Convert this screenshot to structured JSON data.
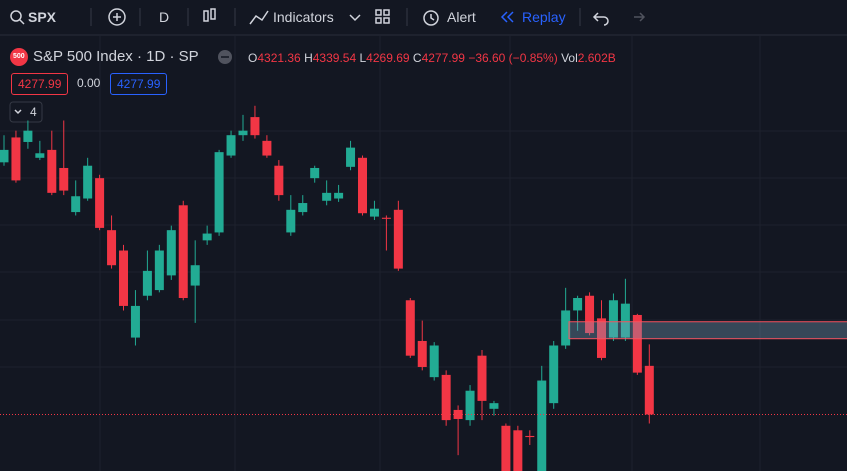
{
  "toolbar": {
    "symbol": "SPX",
    "interval": "D",
    "indicators": "Indicators",
    "alert": "Alert",
    "replay": "Replay"
  },
  "legend": {
    "badge": "500",
    "title": "S&P 500 Index · 1D · SP",
    "open_label": "O",
    "open": "4321.36",
    "high_label": "H",
    "high": "4339.54",
    "low_label": "L",
    "low": "4269.69",
    "close_label": "C",
    "close": "4277.99",
    "change": "−36.60 (−0.85%)",
    "vol_label": "Vol",
    "vol": "2.602B",
    "sell_price": "4277.99",
    "spread": "0.00",
    "buy_price": "4277.99",
    "collapse": "4"
  },
  "chart": {
    "type": "candlestick",
    "ylim": [
      4228,
      4580
    ],
    "up_color": "#22ab94",
    "down_color": "#f23645",
    "ohlc": [
      [
        4501,
        4525,
        4498,
        4512
      ],
      [
        4523,
        4529,
        4483,
        4485
      ],
      [
        4519,
        4538,
        4513,
        4529
      ],
      [
        4505,
        4520,
        4503,
        4509
      ],
      [
        4512,
        4529,
        4472,
        4474
      ],
      [
        4496,
        4538,
        4472,
        4476
      ],
      [
        4457,
        4485,
        4454,
        4471
      ],
      [
        4469,
        4505,
        4467,
        4498
      ],
      [
        4487,
        4490,
        4441,
        4443
      ],
      [
        4441,
        4454,
        4407,
        4410
      ],
      [
        4423,
        4428,
        4370,
        4374
      ],
      [
        4346,
        4388,
        4339,
        4374
      ],
      [
        4383,
        4423,
        4379,
        4405
      ],
      [
        4388,
        4428,
        4386,
        4423
      ],
      [
        4401,
        4445,
        4397,
        4441
      ],
      [
        4463,
        4467,
        4379,
        4381
      ],
      [
        4392,
        4432,
        4359,
        4410
      ],
      [
        4432,
        4445,
        4428,
        4438
      ],
      [
        4439,
        4512,
        4436,
        4510
      ],
      [
        4507,
        4529,
        4505,
        4525
      ],
      [
        4525,
        4543,
        4520,
        4529
      ],
      [
        4541,
        4551,
        4522,
        4525
      ],
      [
        4520,
        4525,
        4505,
        4507
      ],
      [
        4498,
        4503,
        4467,
        4472
      ],
      [
        4439,
        4472,
        4436,
        4459
      ],
      [
        4457,
        4472,
        4454,
        4465
      ],
      [
        4487,
        4498,
        4483,
        4496
      ],
      [
        4467,
        4485,
        4463,
        4474
      ],
      [
        4469,
        4481,
        4466,
        4474
      ],
      [
        4497,
        4520,
        4494,
        4514
      ],
      [
        4505,
        4507,
        4454,
        4456
      ],
      [
        4453,
        4467,
        4450,
        4460
      ],
      [
        4452,
        4454,
        4423,
        4451
      ],
      [
        4459,
        4467,
        4405,
        4407
      ],
      [
        4379,
        4381,
        4328,
        4330
      ],
      [
        4343,
        4361,
        4317,
        4320
      ],
      [
        4311,
        4342,
        4308,
        4339
      ],
      [
        4313,
        4317,
        4268,
        4273
      ],
      [
        4282,
        4286,
        4242,
        4274
      ],
      [
        4273,
        4304,
        4268,
        4299
      ],
      [
        4330,
        4335,
        4273,
        4290
      ],
      [
        4283,
        4290,
        4277,
        4288
      ],
      [
        4268,
        4270,
        4211,
        4215
      ],
      [
        4264,
        4268,
        4210,
        4220
      ],
      [
        4259,
        4264,
        4251,
        4258
      ],
      [
        4220,
        4321,
        4211,
        4308
      ],
      [
        4288,
        4343,
        4283,
        4339
      ],
      [
        4339,
        4390,
        4336,
        4370
      ],
      [
        4370,
        4383,
        4352,
        4381
      ],
      [
        4383,
        4386,
        4348,
        4350
      ],
      [
        4363,
        4379,
        4326,
        4328
      ],
      [
        4346,
        4385,
        4343,
        4379
      ],
      [
        4346,
        4398,
        4343,
        4376
      ],
      [
        4366,
        4367,
        4313,
        4315
      ],
      [
        4321,
        4340,
        4270,
        4278
      ]
    ],
    "zone": [
      4345,
      4360
    ],
    "price_line": 4277.99
  }
}
